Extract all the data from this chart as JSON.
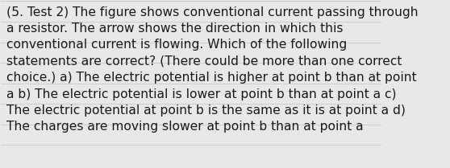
{
  "text": "(5. Test 2) The figure shows conventional current passing through\na resistor. The arrow shows the direction in which this\nconventional current is flowing. Which of the following\nstatements are correct? (There could be more than one correct\nchoice.) a) The electric potential is higher at point b than at point\na b) The electric potential is lower at point b than at point a c)\nThe electric potential at point b is the same as it is at point a d)\nThe charges are moving slower at point b than at point a",
  "background_color": "#e8e8e8",
  "text_color": "#1a1a1a",
  "font_size": 11.2,
  "font_family": "DejaVu Sans",
  "fig_width": 5.58,
  "fig_height": 2.09,
  "dpi": 100,
  "line_color": "#c8c8c8",
  "num_lines": 8
}
